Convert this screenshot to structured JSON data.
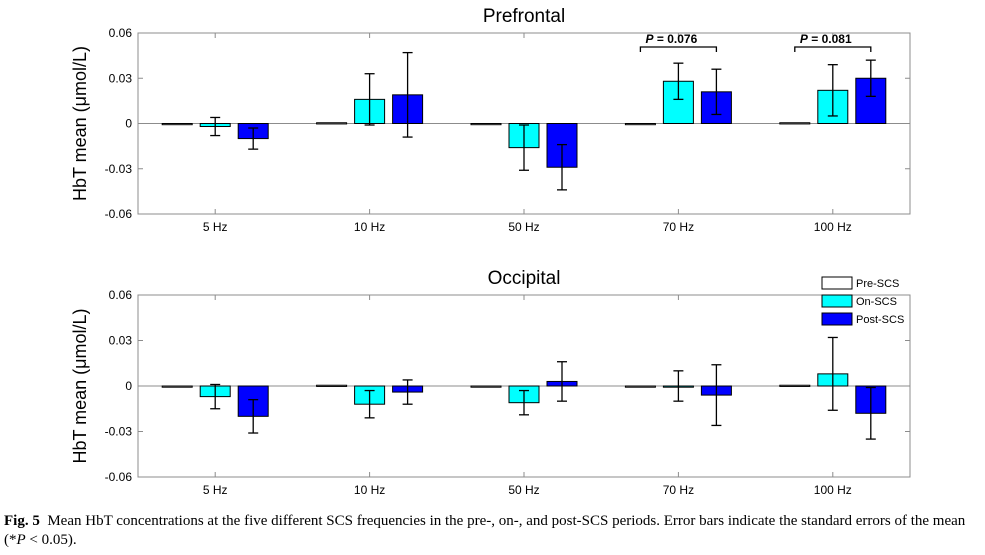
{
  "chart_data": [
    {
      "type": "bar",
      "title": "Prefrontal",
      "ylabel": "HbT mean (μmol/L)",
      "xlabel": "",
      "categories": [
        "5 Hz",
        "10 Hz",
        "50 Hz",
        "70 Hz",
        "100 Hz"
      ],
      "ylim": [
        -0.06,
        0.06
      ],
      "yticks": [
        "-0.06",
        "-0.03",
        "0",
        "0.03",
        "0.06"
      ],
      "grid": false,
      "series": [
        {
          "name": "Pre-SCS",
          "color": "#ffffff",
          "values": [
            -0.0005,
            0.0005,
            0.0,
            0.0,
            0.0005
          ],
          "errors": [
            0.0,
            0.0,
            0.0,
            0.0,
            0.0
          ]
        },
        {
          "name": "On-SCS",
          "color": "#00ffff",
          "values": [
            -0.002,
            0.016,
            -0.016,
            0.028,
            0.022
          ],
          "errors": [
            0.006,
            0.017,
            0.015,
            0.012,
            0.017
          ]
        },
        {
          "name": "Post-SCS",
          "color": "#0000ff",
          "values": [
            -0.01,
            0.019,
            -0.029,
            0.021,
            0.03
          ],
          "errors": [
            0.007,
            0.028,
            0.015,
            0.015,
            0.012
          ]
        }
      ],
      "annotations": [
        {
          "category_index": 3,
          "label": "= 0.076"
        },
        {
          "category_index": 4,
          "label": "= 0.081"
        }
      ],
      "annotation_prefix": "P"
    },
    {
      "type": "bar",
      "title": "Occipital",
      "ylabel": "HbT mean (μmol/L)",
      "xlabel": "",
      "categories": [
        "5 Hz",
        "10 Hz",
        "50 Hz",
        "70 Hz",
        "100 Hz"
      ],
      "ylim": [
        -0.06,
        0.06
      ],
      "yticks": [
        "-0.06",
        "-0.03",
        "0",
        "0.03",
        "0.06"
      ],
      "grid": false,
      "legend_placement": "top-right",
      "series": [
        {
          "name": "Pre-SCS",
          "color": "#ffffff",
          "values": [
            0.0,
            0.0005,
            -0.0005,
            -0.0005,
            0.0005
          ],
          "errors": [
            0.0,
            0.0,
            0.0,
            0.0,
            0.0
          ]
        },
        {
          "name": "On-SCS",
          "color": "#00ffff",
          "values": [
            -0.007,
            -0.012,
            -0.011,
            0.0,
            0.008
          ],
          "errors": [
            0.008,
            0.009,
            0.008,
            0.01,
            0.024
          ]
        },
        {
          "name": "Post-SCS",
          "color": "#0000ff",
          "values": [
            -0.02,
            -0.004,
            0.003,
            -0.006,
            -0.018
          ],
          "errors": [
            0.011,
            0.008,
            0.013,
            0.02,
            0.017
          ]
        }
      ]
    }
  ],
  "caption": {
    "fig_label": "Fig. 5",
    "text": "Mean HbT concentrations at the five different SCS frequencies in the pre-, on-, and post-SCS periods. Error bars indicate the standard errors of the mean (*",
    "p_symbol": "P",
    "text_end": " < 0.05)."
  }
}
